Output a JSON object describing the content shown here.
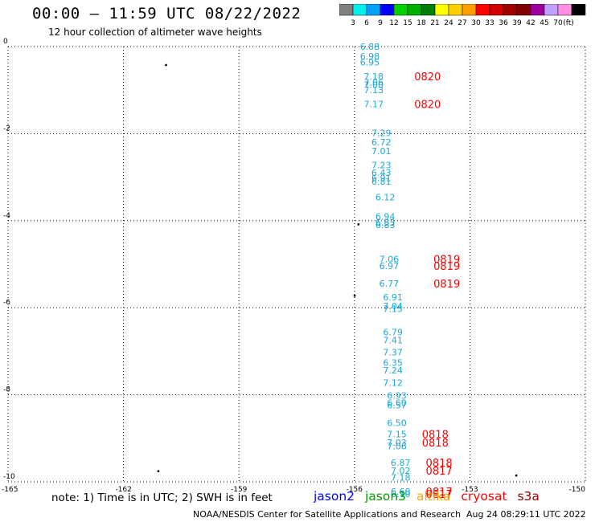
{
  "header": {
    "title": "00:00 – 11:59 UTC 08/22/2022",
    "subtitle": "12 hour collection of altimeter wave heights"
  },
  "colorbar": {
    "unit": "(ft)",
    "ticks": [
      "3",
      "6",
      "9",
      "12",
      "15",
      "18",
      "21",
      "24",
      "27",
      "30",
      "33",
      "36",
      "39",
      "42",
      "45",
      "70"
    ],
    "colors": [
      "#7f7f7f",
      "#00f0f0",
      "#00a0ff",
      "#0000ff",
      "#00d000",
      "#00b000",
      "#008000",
      "#ffff00",
      "#ffd000",
      "#ffa000",
      "#ff0000",
      "#d00000",
      "#a00000",
      "#800000",
      "#a000a0",
      "#c0a0ff",
      "#ff90e0",
      "#000000"
    ]
  },
  "footer": {
    "note": "note:  1) Time is in UTC;  2) SWH is in feet",
    "credit": "NOAA/NESDIS Center for Satellite Applications and Research",
    "timestamp": "Aug 24 08:29:11 UTC 2022"
  },
  "legend": [
    {
      "name": "jason2",
      "color": "#0000ff"
    },
    {
      "name": "jason3",
      "color": "#00a000"
    },
    {
      "name": "altika",
      "color": "#ffa000"
    },
    {
      "name": "cryosat",
      "color": "#ff0000"
    },
    {
      "name": "s3a",
      "color": "#a00000"
    }
  ],
  "chart_data": {
    "type": "scatter",
    "xlim": [
      -165,
      -150
    ],
    "ylim": [
      -10,
      0
    ],
    "x_ticks": [
      "-165",
      "-162",
      "-159",
      "-156",
      "-153",
      "-150"
    ],
    "x_tick_values": [
      -165,
      -162,
      -159,
      -156,
      -153,
      -150
    ],
    "y_ticks": [
      "0",
      "-2",
      "-4",
      "-6",
      "-8",
      "-10"
    ],
    "y_tick_values": [
      0,
      -2,
      -4,
      -6,
      -8,
      -10
    ],
    "grid": true,
    "swh_color": "#1aa8d8",
    "date_color": "#ff0000",
    "swh_points": [
      {
        "x": -155.6,
        "y": 0.0,
        "label": "6.88"
      },
      {
        "x": -155.6,
        "y": -0.22,
        "label": "6.98"
      },
      {
        "x": -155.6,
        "y": -0.36,
        "label": "6.95"
      },
      {
        "x": -155.5,
        "y": -0.68,
        "label": "7.18"
      },
      {
        "x": -155.5,
        "y": -0.82,
        "label": "7.06"
      },
      {
        "x": -155.5,
        "y": -0.88,
        "label": "7.00"
      },
      {
        "x": -155.5,
        "y": -1.0,
        "label": "7.13"
      },
      {
        "x": -155.5,
        "y": -1.32,
        "label": "7.17"
      },
      {
        "x": -155.3,
        "y": -1.98,
        "label": "7.29"
      },
      {
        "x": -155.3,
        "y": -2.2,
        "label": "6.72"
      },
      {
        "x": -155.3,
        "y": -2.4,
        "label": "7.01"
      },
      {
        "x": -155.3,
        "y": -2.72,
        "label": "7.23"
      },
      {
        "x": -155.3,
        "y": -2.9,
        "label": "6.43"
      },
      {
        "x": -155.3,
        "y": -3.02,
        "label": "6.91"
      },
      {
        "x": -155.3,
        "y": -3.1,
        "label": "6.81"
      },
      {
        "x": -155.2,
        "y": -3.46,
        "label": "6.12"
      },
      {
        "x": -155.2,
        "y": -3.9,
        "label": "6.94"
      },
      {
        "x": -155.2,
        "y": -4.04,
        "label": "6.53"
      },
      {
        "x": -155.2,
        "y": -4.1,
        "label": "6.83"
      },
      {
        "x": -155.1,
        "y": -4.88,
        "label": "7.06"
      },
      {
        "x": -155.1,
        "y": -5.04,
        "label": "6.97"
      },
      {
        "x": -155.1,
        "y": -5.44,
        "label": "6.77"
      },
      {
        "x": -155.0,
        "y": -5.76,
        "label": "6.91"
      },
      {
        "x": -155.0,
        "y": -5.96,
        "label": "7.04"
      },
      {
        "x": -155.0,
        "y": -6.02,
        "label": "7.15"
      },
      {
        "x": -155.0,
        "y": -6.56,
        "label": "6.79"
      },
      {
        "x": -155.0,
        "y": -6.74,
        "label": "7.41"
      },
      {
        "x": -155.0,
        "y": -7.02,
        "label": "7.37"
      },
      {
        "x": -155.0,
        "y": -7.26,
        "label": "6.35"
      },
      {
        "x": -155.0,
        "y": -7.44,
        "label": "7.24"
      },
      {
        "x": -155.0,
        "y": -7.72,
        "label": "7.12"
      },
      {
        "x": -154.9,
        "y": -8.02,
        "label": "6.93"
      },
      {
        "x": -154.9,
        "y": -8.18,
        "label": "6.60"
      },
      {
        "x": -154.9,
        "y": -8.24,
        "label": "6.57"
      },
      {
        "x": -154.9,
        "y": -8.64,
        "label": "6.50"
      },
      {
        "x": -154.9,
        "y": -8.9,
        "label": "7.15"
      },
      {
        "x": -154.9,
        "y": -9.1,
        "label": "7.03"
      },
      {
        "x": -154.9,
        "y": -9.18,
        "label": "7.06"
      },
      {
        "x": -154.8,
        "y": -9.56,
        "label": "6.87"
      },
      {
        "x": -154.8,
        "y": -9.74,
        "label": "7.02"
      },
      {
        "x": -154.8,
        "y": -9.9,
        "label": "7.18"
      },
      {
        "x": -154.8,
        "y": -10.22,
        "label": "6.60"
      },
      {
        "x": -154.8,
        "y": -10.28,
        "label": "6.10"
      }
    ],
    "date_labels": [
      {
        "x": -154.1,
        "y": -0.68,
        "label": "0820"
      },
      {
        "x": -154.1,
        "y": -1.32,
        "label": "0820"
      },
      {
        "x": -153.6,
        "y": -4.88,
        "label": "0819"
      },
      {
        "x": -153.6,
        "y": -5.04,
        "label": "0819"
      },
      {
        "x": -153.6,
        "y": -5.44,
        "label": "0819"
      },
      {
        "x": -153.9,
        "y": -8.9,
        "label": "0818"
      },
      {
        "x": -153.9,
        "y": -9.1,
        "label": "0818"
      },
      {
        "x": -153.8,
        "y": -9.56,
        "label": "0818"
      },
      {
        "x": -153.8,
        "y": -9.74,
        "label": "0817"
      },
      {
        "x": -153.8,
        "y": -10.22,
        "label": "0817"
      },
      {
        "x": -153.8,
        "y": -10.28,
        "label": "0817"
      }
    ],
    "land_marks": [
      {
        "x": -160.9,
        "y": -0.42
      },
      {
        "x": -155.9,
        "y": -4.08
      },
      {
        "x": -156.0,
        "y": -5.72
      },
      {
        "x": -161.1,
        "y": -9.75
      },
      {
        "x": -151.8,
        "y": -9.85
      }
    ]
  }
}
